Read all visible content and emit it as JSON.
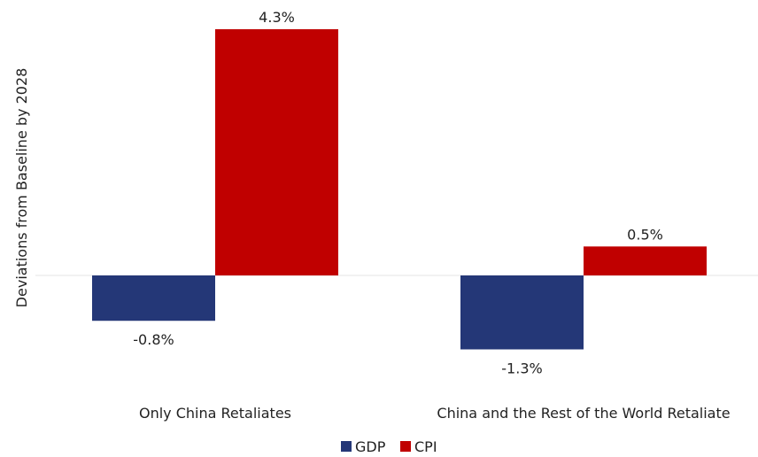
{
  "chart_data": {
    "type": "bar",
    "title": "",
    "xlabel": "",
    "ylabel": "Deviations from Baseline by 2028",
    "categories": [
      "Only China Retaliates",
      "China and the Rest of the World Retaliate"
    ],
    "series": [
      {
        "name": "GDP",
        "values": [
          -0.8,
          -1.3
        ],
        "labels": [
          "-0.8%",
          "-1.3%"
        ],
        "color": "#243777"
      },
      {
        "name": "CPI",
        "values": [
          4.3,
          0.5
        ],
        "labels": [
          "4.3%",
          "0.5%"
        ],
        "color": "#c00000"
      }
    ],
    "ylim": [
      -1.3,
      4.3
    ],
    "grid": false,
    "legend": "bottom-center"
  }
}
